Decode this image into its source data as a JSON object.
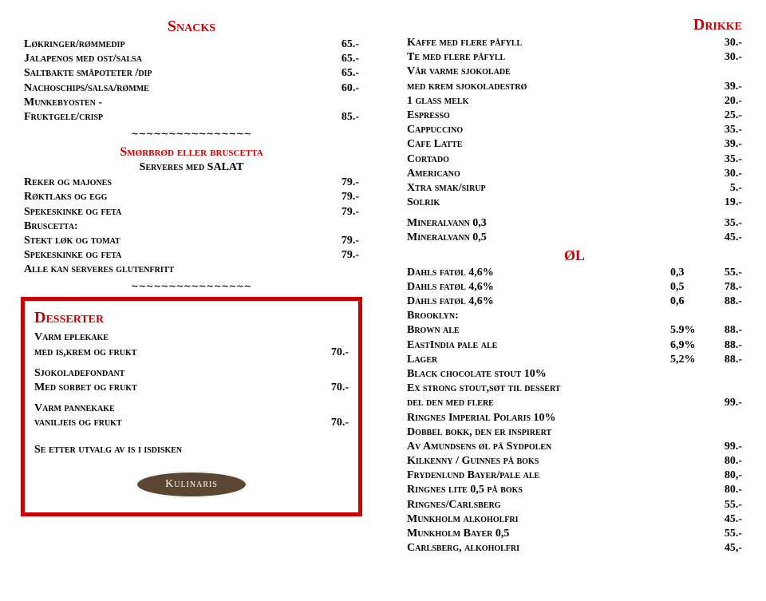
{
  "left": {
    "snacks_title": "Snacks",
    "snacks": [
      {
        "name": "Løkringer/rømmedip",
        "price": "65.-"
      },
      {
        "name": "Jalapenos med ost/salsa",
        "price": "65.-"
      },
      {
        "name": "Saltbakte småpoteter /dip",
        "price": "65.-"
      },
      {
        "name": "Nachoschips/salsa/rømme",
        "price": "60.-"
      },
      {
        "name": "Munkebyosten -",
        "price": ""
      },
      {
        "name": "Fruktgele/crisp",
        "price": "85.-"
      }
    ],
    "sep": "~~~~~~~~~~~~~~~~",
    "smorbrod_title": "Smørbrød eller bruscetta",
    "serveres": "Serveres med SALAT",
    "smorbrod_items": [
      {
        "name": "Reker og majones",
        "price": "79.-"
      },
      {
        "name": "Røktlaks og egg",
        "price": "79.-"
      },
      {
        "name": "Spekeskinke og feta",
        "price": "79.-"
      },
      {
        "name": "Bruscetta:",
        "price": ""
      },
      {
        "name": "Stekt løk og tomat",
        "price": "79.-"
      },
      {
        "name": "Spekeskinke og feta",
        "price": "79.-"
      }
    ],
    "glutenfritt": "Alle kan serveres glutenfritt",
    "desserts_title": "Desserter",
    "desserts": [
      {
        "l1": "Varm eplekake",
        "l2": "med is,krem og frukt",
        "price": "70.-"
      },
      {
        "l1": "Sjokoladefondant",
        "l2": "Med sorbet og frukt",
        "price": "70.-"
      },
      {
        "l1": "Varm pannekake",
        "l2": "vaniljeis og frukt",
        "price": "70.-"
      }
    ],
    "dessert_note": "Se etter utvalg av is i isdisken",
    "logo_text": "Kulinaris"
  },
  "right": {
    "drikke_title": "Drikke",
    "drikke": [
      {
        "name": "Kaffe med flere påfyll",
        "price": "30.-"
      },
      {
        "name": "Te med flere påfyll",
        "price": "30.-"
      },
      {
        "name": "Vår varme sjokolade",
        "price": ""
      },
      {
        "name": "med krem sjokoladestrø",
        "price": "39.-"
      },
      {
        "name": "1 glass melk",
        "price": "20.-"
      },
      {
        "name": "Espresso",
        "price": "25.-"
      },
      {
        "name": "Cappuccino",
        "price": "35.-"
      },
      {
        "name": "Cafe Latte",
        "price": "39.-"
      },
      {
        "name": "Cortado",
        "price": "35.-"
      },
      {
        "name": "Americano",
        "price": "30.-"
      },
      {
        "name": "Xtra smak/sirup",
        "price": "5.-"
      },
      {
        "name": "Solrik",
        "price": "19.-"
      }
    ],
    "mineral": [
      {
        "name": "Mineralvann 0,3",
        "price": "35.-"
      },
      {
        "name": "Mineralvann 0,5",
        "price": "45.-"
      }
    ],
    "ol_title": "ØL",
    "ol_three": [
      {
        "name": "Dahls fatøl 4,6%",
        "size": "0,3",
        "price": "55.-"
      },
      {
        "name": "Dahls fatøl 4,6%",
        "size": "0,5",
        "price": "78.-"
      },
      {
        "name": "Dahls fatøl 4,6%",
        "size": "0,6",
        "price": "88.-"
      }
    ],
    "brooklyn_label": "Brooklyn:",
    "brooklyn": [
      {
        "name": "Brown ale",
        "pct": "5.9%",
        "price": "88.-"
      },
      {
        "name": "EastIndia pale ale",
        "pct": "6,9%",
        "price": "88.-"
      },
      {
        "name": "Lager",
        "pct": "5,2%",
        "price": "88.-"
      }
    ],
    "black_choc": "Black chocolate stout 10%",
    "ex_strong": "Ex strong stout,søt til dessert",
    "del_den": {
      "name": "del den med flere",
      "price": "99.-"
    },
    "ringnes_imp": "Ringnes Imperial Polaris 10%",
    "dobbel": "Dobbel bokk, den er inspirert",
    "amundsen": {
      "name": "Av Amundsens øl på Sydpolen",
      "price": "99.-"
    },
    "rest": [
      {
        "name": "Kilkenny / Guinnes på boks",
        "price": "80.-"
      },
      {
        "name": "Frydenlund Bayer/pale ale",
        "price": "80,-"
      },
      {
        "name": "Ringnes lite 0,5 på boks",
        "price": "80.-"
      },
      {
        "name": "Ringnes/Carlsberg",
        "price": "55.-"
      },
      {
        "name": "Munkholm alkoholfri",
        "price": "45.-"
      },
      {
        "name": "Munkholm Bayer 0,5",
        "price": "55.-"
      },
      {
        "name": "Carlsberg, alkoholfri",
        "price": "45,-"
      }
    ]
  },
  "colors": {
    "red": "#cc0000",
    "brown": "#5b4634"
  }
}
